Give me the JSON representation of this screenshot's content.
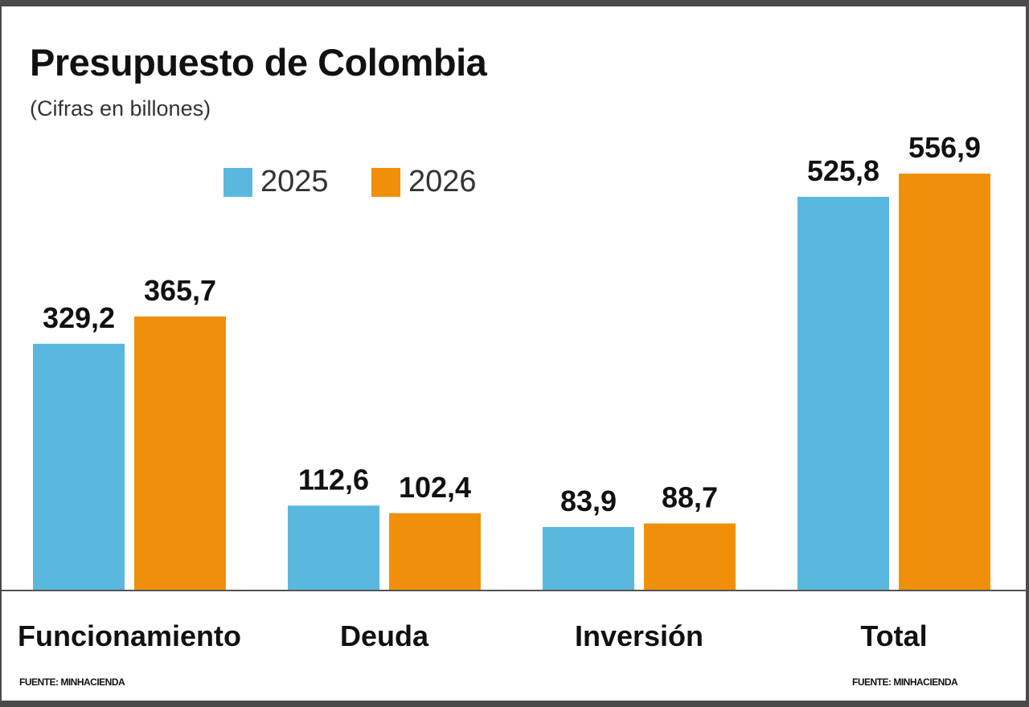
{
  "chart_data": {
    "type": "bar",
    "title": "Presupuesto de Colombia",
    "subtitle": "(Cifras en billones)",
    "categories": [
      "Funcionamiento",
      "Deuda",
      "Inversión",
      "Total"
    ],
    "series": [
      {
        "name": "2025",
        "color": "#5ab8de",
        "values": [
          329.2,
          112.6,
          83.9,
          525.8
        ],
        "labels": [
          "329,2",
          "112,6",
          "83,9",
          "525,8"
        ]
      },
      {
        "name": "2026",
        "color": "#f0900a",
        "values": [
          365.7,
          102.4,
          88.7,
          556.9
        ],
        "labels": [
          "365,7",
          "102,4",
          "88,7",
          "556,9"
        ]
      }
    ],
    "ylim": [
      0,
      600
    ],
    "grid": false,
    "legend": "top-left",
    "source": "FUENTE: MINHACIENDA"
  }
}
